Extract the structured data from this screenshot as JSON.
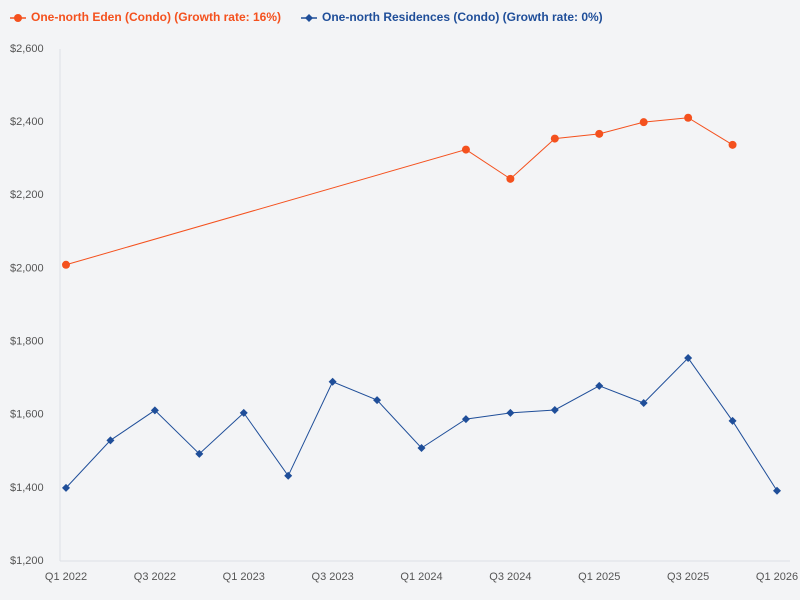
{
  "chart_data": {
    "type": "line",
    "categories": [
      "Q1 2022",
      null,
      "Q3 2022",
      null,
      "Q1 2023",
      null,
      "Q3 2023",
      null,
      "Q1 2024",
      null,
      "Q3 2024",
      null,
      "Q1 2025",
      null,
      "Q3 2025",
      null,
      "Q1 2026"
    ],
    "series": [
      {
        "name": "One-north Eden (Condo) (Growth rate: 16%)",
        "color": "#f4511e",
        "marker": "circle",
        "values": [
          2010,
          null,
          null,
          null,
          null,
          null,
          null,
          null,
          null,
          2325,
          2245,
          2355,
          2368,
          2400,
          2412,
          2338,
          null
        ]
      },
      {
        "name": "One-north Residences (Condo) (Growth rate: 0%)",
        "color": "#1f4e99",
        "marker": "diamond",
        "values": [
          1400,
          1530,
          1612,
          1493,
          1605,
          1433,
          1690,
          1640,
          1509,
          1588,
          1605,
          1613,
          1679,
          1632,
          1755,
          1583,
          1392
        ]
      }
    ],
    "span_gaps": true,
    "ylim": [
      1200,
      2600
    ],
    "yticks": [
      {
        "value": 1200,
        "label": "$1,200"
      },
      {
        "value": 1400,
        "label": "$1,400"
      },
      {
        "value": 1600,
        "label": "$1,600"
      },
      {
        "value": 1800,
        "label": "$1,800"
      },
      {
        "value": 2000,
        "label": "$2,000"
      },
      {
        "value": 2200,
        "label": "$2,200"
      },
      {
        "value": 2400,
        "label": "$2,400"
      },
      {
        "value": 2600,
        "label": "$2,600"
      }
    ],
    "grid": false,
    "legend": "top-left"
  }
}
